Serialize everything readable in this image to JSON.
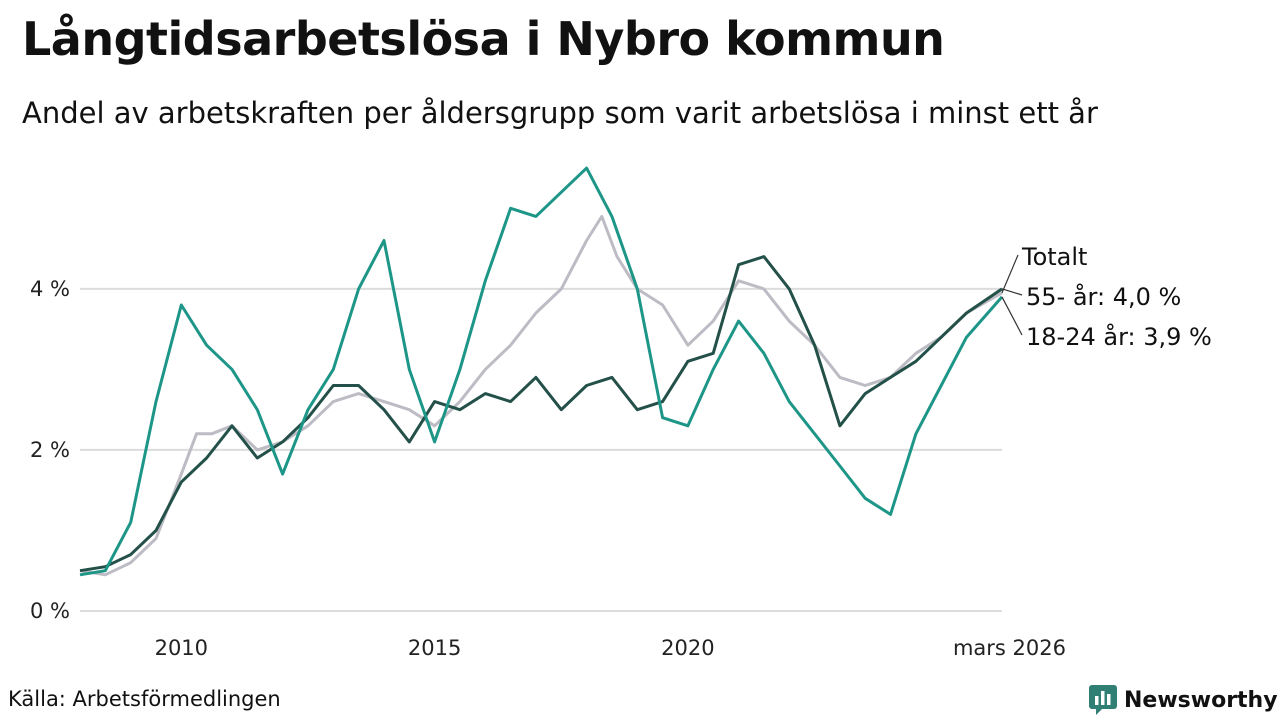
{
  "colors": {
    "total": "#bdbcc4",
    "age_55": "#235048",
    "age_18_24": "#1d9688",
    "grid": "#dcdcdc",
    "brand": "#2f7f74"
  },
  "footer": {
    "source": "Källa: Arbetsförmedlingen",
    "brand_name": "Newsworthy"
  },
  "chart_data": {
    "type": "line",
    "title": "Långtidsarbetslösa i Nybro kommun",
    "subtitle": "Andel av arbetskraften per åldersgrupp som varit arbetslösa i minst ett år",
    "xlabel": "",
    "ylabel": "",
    "x_range": [
      2008.0,
      2026.2
    ],
    "ylim": [
      0,
      5.6
    ],
    "y_ticks": [
      {
        "value": 0,
        "label": "0 %"
      },
      {
        "value": 2,
        "label": "2 %"
      },
      {
        "value": 4,
        "label": "4 %"
      }
    ],
    "x_ticks": [
      {
        "value": 2010,
        "label": "2010"
      },
      {
        "value": 2015,
        "label": "2015"
      },
      {
        "value": 2020,
        "label": "2020"
      },
      {
        "value": 2026.2,
        "label": "mars 2026"
      }
    ],
    "grid": "horizontal",
    "series": [
      {
        "name": "Totalt",
        "label": "Totalt",
        "color_key": "total",
        "points": [
          [
            2008.0,
            0.5
          ],
          [
            2008.5,
            0.45
          ],
          [
            2009.0,
            0.6
          ],
          [
            2009.5,
            0.9
          ],
          [
            2010.0,
            1.7
          ],
          [
            2010.3,
            2.2
          ],
          [
            2010.6,
            2.2
          ],
          [
            2011.0,
            2.3
          ],
          [
            2011.5,
            2.0
          ],
          [
            2012.0,
            2.1
          ],
          [
            2012.5,
            2.3
          ],
          [
            2013.0,
            2.6
          ],
          [
            2013.5,
            2.7
          ],
          [
            2014.0,
            2.6
          ],
          [
            2014.5,
            2.5
          ],
          [
            2015.0,
            2.3
          ],
          [
            2015.5,
            2.6
          ],
          [
            2016.0,
            3.0
          ],
          [
            2016.5,
            3.3
          ],
          [
            2017.0,
            3.7
          ],
          [
            2017.5,
            4.0
          ],
          [
            2018.0,
            4.6
          ],
          [
            2018.3,
            4.9
          ],
          [
            2018.6,
            4.4
          ],
          [
            2019.0,
            4.0
          ],
          [
            2019.5,
            3.8
          ],
          [
            2020.0,
            3.3
          ],
          [
            2020.5,
            3.6
          ],
          [
            2021.0,
            4.1
          ],
          [
            2021.5,
            4.0
          ],
          [
            2022.0,
            3.6
          ],
          [
            2022.5,
            3.3
          ],
          [
            2023.0,
            2.9
          ],
          [
            2023.5,
            2.8
          ],
          [
            2024.0,
            2.9
          ],
          [
            2024.5,
            3.2
          ],
          [
            2025.0,
            3.4
          ],
          [
            2025.5,
            3.7
          ],
          [
            2026.2,
            3.95
          ]
        ]
      },
      {
        "name": "55- år",
        "label": "55- år: 4,0 %",
        "color_key": "age_55",
        "points": [
          [
            2008.0,
            0.5
          ],
          [
            2008.5,
            0.55
          ],
          [
            2009.0,
            0.7
          ],
          [
            2009.5,
            1.0
          ],
          [
            2010.0,
            1.6
          ],
          [
            2010.5,
            1.9
          ],
          [
            2011.0,
            2.3
          ],
          [
            2011.5,
            1.9
          ],
          [
            2012.0,
            2.1
          ],
          [
            2012.5,
            2.4
          ],
          [
            2013.0,
            2.8
          ],
          [
            2013.5,
            2.8
          ],
          [
            2014.0,
            2.5
          ],
          [
            2014.5,
            2.1
          ],
          [
            2015.0,
            2.6
          ],
          [
            2015.5,
            2.5
          ],
          [
            2016.0,
            2.7
          ],
          [
            2016.5,
            2.6
          ],
          [
            2017.0,
            2.9
          ],
          [
            2017.5,
            2.5
          ],
          [
            2018.0,
            2.8
          ],
          [
            2018.5,
            2.9
          ],
          [
            2019.0,
            2.5
          ],
          [
            2019.5,
            2.6
          ],
          [
            2020.0,
            3.1
          ],
          [
            2020.5,
            3.2
          ],
          [
            2021.0,
            4.3
          ],
          [
            2021.5,
            4.4
          ],
          [
            2022.0,
            4.0
          ],
          [
            2022.5,
            3.3
          ],
          [
            2023.0,
            2.3
          ],
          [
            2023.5,
            2.7
          ],
          [
            2024.0,
            2.9
          ],
          [
            2024.5,
            3.1
          ],
          [
            2025.0,
            3.4
          ],
          [
            2025.5,
            3.7
          ],
          [
            2026.2,
            4.0
          ]
        ]
      },
      {
        "name": "18-24 år",
        "label": "18-24 år: 3,9 %",
        "color_key": "age_18_24",
        "points": [
          [
            2008.0,
            0.45
          ],
          [
            2008.5,
            0.5
          ],
          [
            2009.0,
            1.1
          ],
          [
            2009.5,
            2.6
          ],
          [
            2010.0,
            3.8
          ],
          [
            2010.5,
            3.3
          ],
          [
            2011.0,
            3.0
          ],
          [
            2011.5,
            2.5
          ],
          [
            2012.0,
            1.7
          ],
          [
            2012.5,
            2.5
          ],
          [
            2013.0,
            3.0
          ],
          [
            2013.5,
            4.0
          ],
          [
            2014.0,
            4.6
          ],
          [
            2014.5,
            3.0
          ],
          [
            2015.0,
            2.1
          ],
          [
            2015.5,
            3.0
          ],
          [
            2016.0,
            4.1
          ],
          [
            2016.5,
            5.0
          ],
          [
            2017.0,
            4.9
          ],
          [
            2017.5,
            5.2
          ],
          [
            2018.0,
            5.5
          ],
          [
            2018.5,
            4.9
          ],
          [
            2019.0,
            4.0
          ],
          [
            2019.5,
            2.4
          ],
          [
            2020.0,
            2.3
          ],
          [
            2020.5,
            3.0
          ],
          [
            2021.0,
            3.6
          ],
          [
            2021.5,
            3.2
          ],
          [
            2022.0,
            2.6
          ],
          [
            2022.5,
            2.2
          ],
          [
            2023.0,
            1.8
          ],
          [
            2023.5,
            1.4
          ],
          [
            2024.0,
            1.2
          ],
          [
            2024.5,
            2.2
          ],
          [
            2025.0,
            2.8
          ],
          [
            2025.5,
            3.4
          ],
          [
            2026.2,
            3.9
          ]
        ]
      }
    ]
  }
}
